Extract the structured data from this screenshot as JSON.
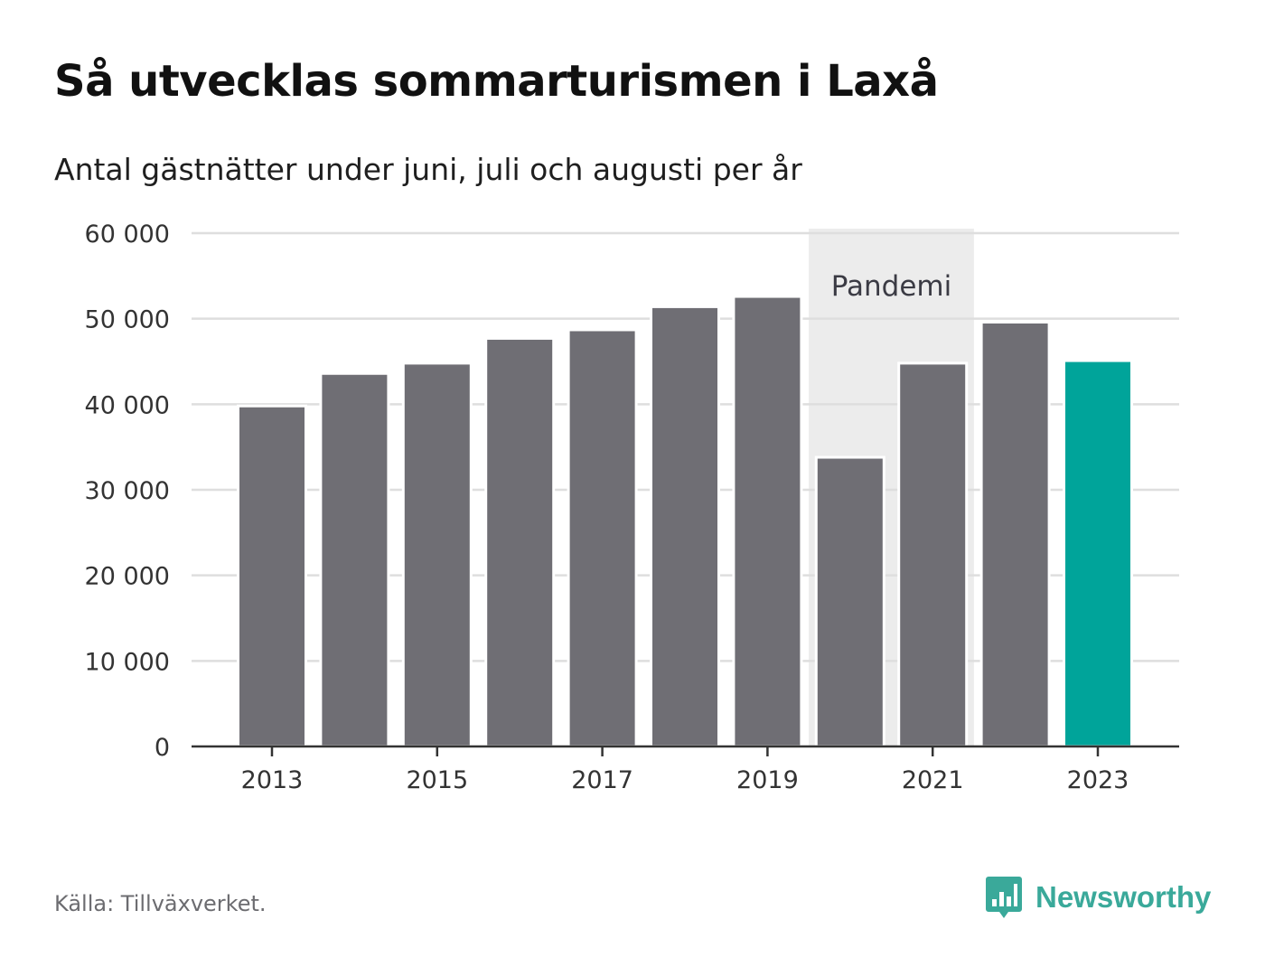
{
  "header": {
    "title": "Så utvecklas sommarturismen i Laxå",
    "subtitle": "Antal gästnätter under juni, juli och augusti per år"
  },
  "footer": {
    "source": "Källa: Tillväxverket.",
    "brand": "Newsworthy",
    "brand_icon": "bar-chart-speech-bubble-icon"
  },
  "chart_data": {
    "type": "bar",
    "title": "Så utvecklas sommarturismen i Laxå",
    "subtitle": "Antal gästnätter under juni, juli och augusti per år",
    "categories": [
      "2013",
      "2014",
      "2015",
      "2016",
      "2017",
      "2018",
      "2019",
      "2020",
      "2021",
      "2022",
      "2023"
    ],
    "values": [
      39800,
      43600,
      44800,
      47700,
      48700,
      51400,
      52600,
      33800,
      44800,
      49600,
      45100
    ],
    "x_tick_labels": [
      "2013",
      "2015",
      "2017",
      "2019",
      "2021",
      "2023"
    ],
    "y_ticks": [
      0,
      10000,
      20000,
      30000,
      40000,
      50000,
      60000
    ],
    "y_tick_labels": [
      "0",
      "10 000",
      "20 000",
      "30 000",
      "40 000",
      "50 000",
      "60 000"
    ],
    "ylim": [
      0,
      60000
    ],
    "grid": true,
    "highlight_category": "2023",
    "colors": {
      "bar": "#6f6e74",
      "highlight": "#00a49a",
      "band": "#ececec",
      "grid": "#dedede",
      "axis": "#333333"
    },
    "annotation": {
      "label": "Pandemi",
      "from": "2020",
      "to": "2021"
    }
  }
}
